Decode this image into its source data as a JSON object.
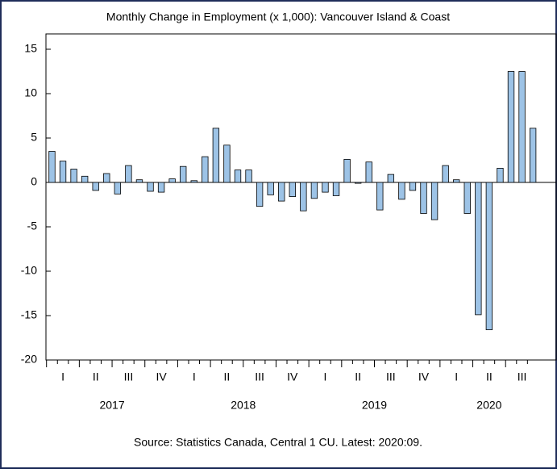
{
  "chart_data": {
    "type": "bar",
    "title": "Monthly Change in Employment (x 1,000): Vancouver Island & Coast",
    "source": "Source: Statistics Canada, Central 1 CU. Latest: 2020:09.",
    "categories": [
      null,
      null,
      null,
      null,
      null,
      null,
      null,
      null,
      null,
      null,
      null,
      null,
      null,
      null,
      null,
      null,
      null,
      null,
      null,
      null,
      null,
      null,
      null,
      null,
      null,
      null,
      null,
      null,
      null,
      null,
      null,
      null,
      null,
      null,
      null,
      null,
      null,
      null,
      null,
      null,
      null,
      null,
      null,
      null,
      null
    ],
    "values": [
      3.5,
      2.4,
      1.5,
      0.7,
      -0.9,
      1.0,
      -1.3,
      1.9,
      0.3,
      -1.0,
      -1.1,
      0.4,
      1.8,
      0.2,
      2.9,
      6.1,
      4.2,
      1.4,
      1.4,
      -2.7,
      -1.4,
      -2.1,
      -1.6,
      -3.2,
      -1.8,
      -1.1,
      -1.5,
      2.6,
      -0.1,
      2.3,
      -3.1,
      0.9,
      -1.9,
      -0.9,
      -3.5,
      -4.2,
      1.9,
      0.3,
      -3.5,
      -14.9,
      -16.6,
      1.6,
      12.5,
      12.5,
      6.1
    ],
    "quarter_labels": [
      "I",
      "II",
      "III",
      "IV",
      "I",
      "II",
      "III",
      "IV",
      "I",
      "II",
      "III",
      "IV",
      "I",
      "II",
      "III"
    ],
    "year_labels": [
      "2017",
      "2018",
      "2019",
      "2020"
    ],
    "color": "#9dc3e6",
    "ylim": [
      -20,
      15
    ],
    "yticks": [
      -20,
      -15,
      -10,
      -5,
      0,
      5,
      10,
      15
    ]
  }
}
